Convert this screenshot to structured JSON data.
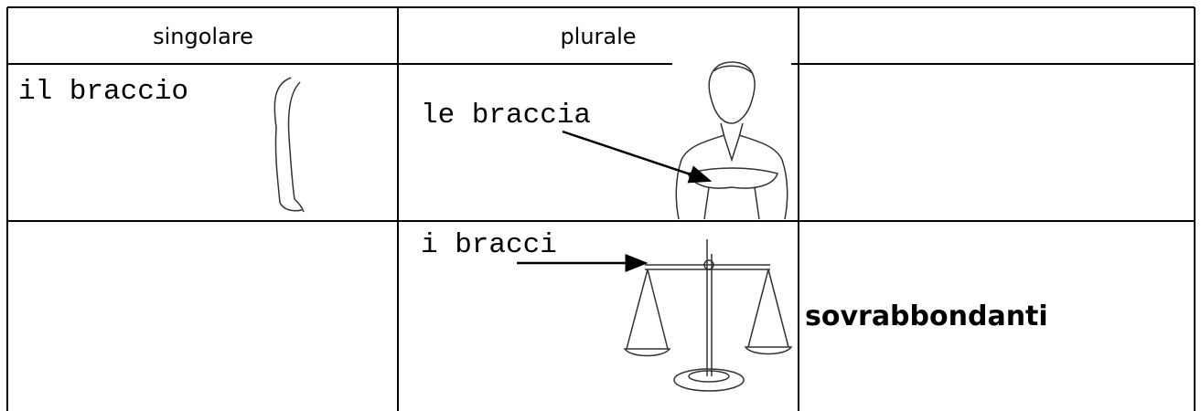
{
  "table": {
    "header": [
      "singolare",
      "plurale"
    ],
    "rows": [
      {
        "singolare": "il braccio",
        "plurale": "le braccia"
      },
      {
        "plurale": "i bracci",
        "nota": "sovrabbondanti"
      }
    ]
  }
}
